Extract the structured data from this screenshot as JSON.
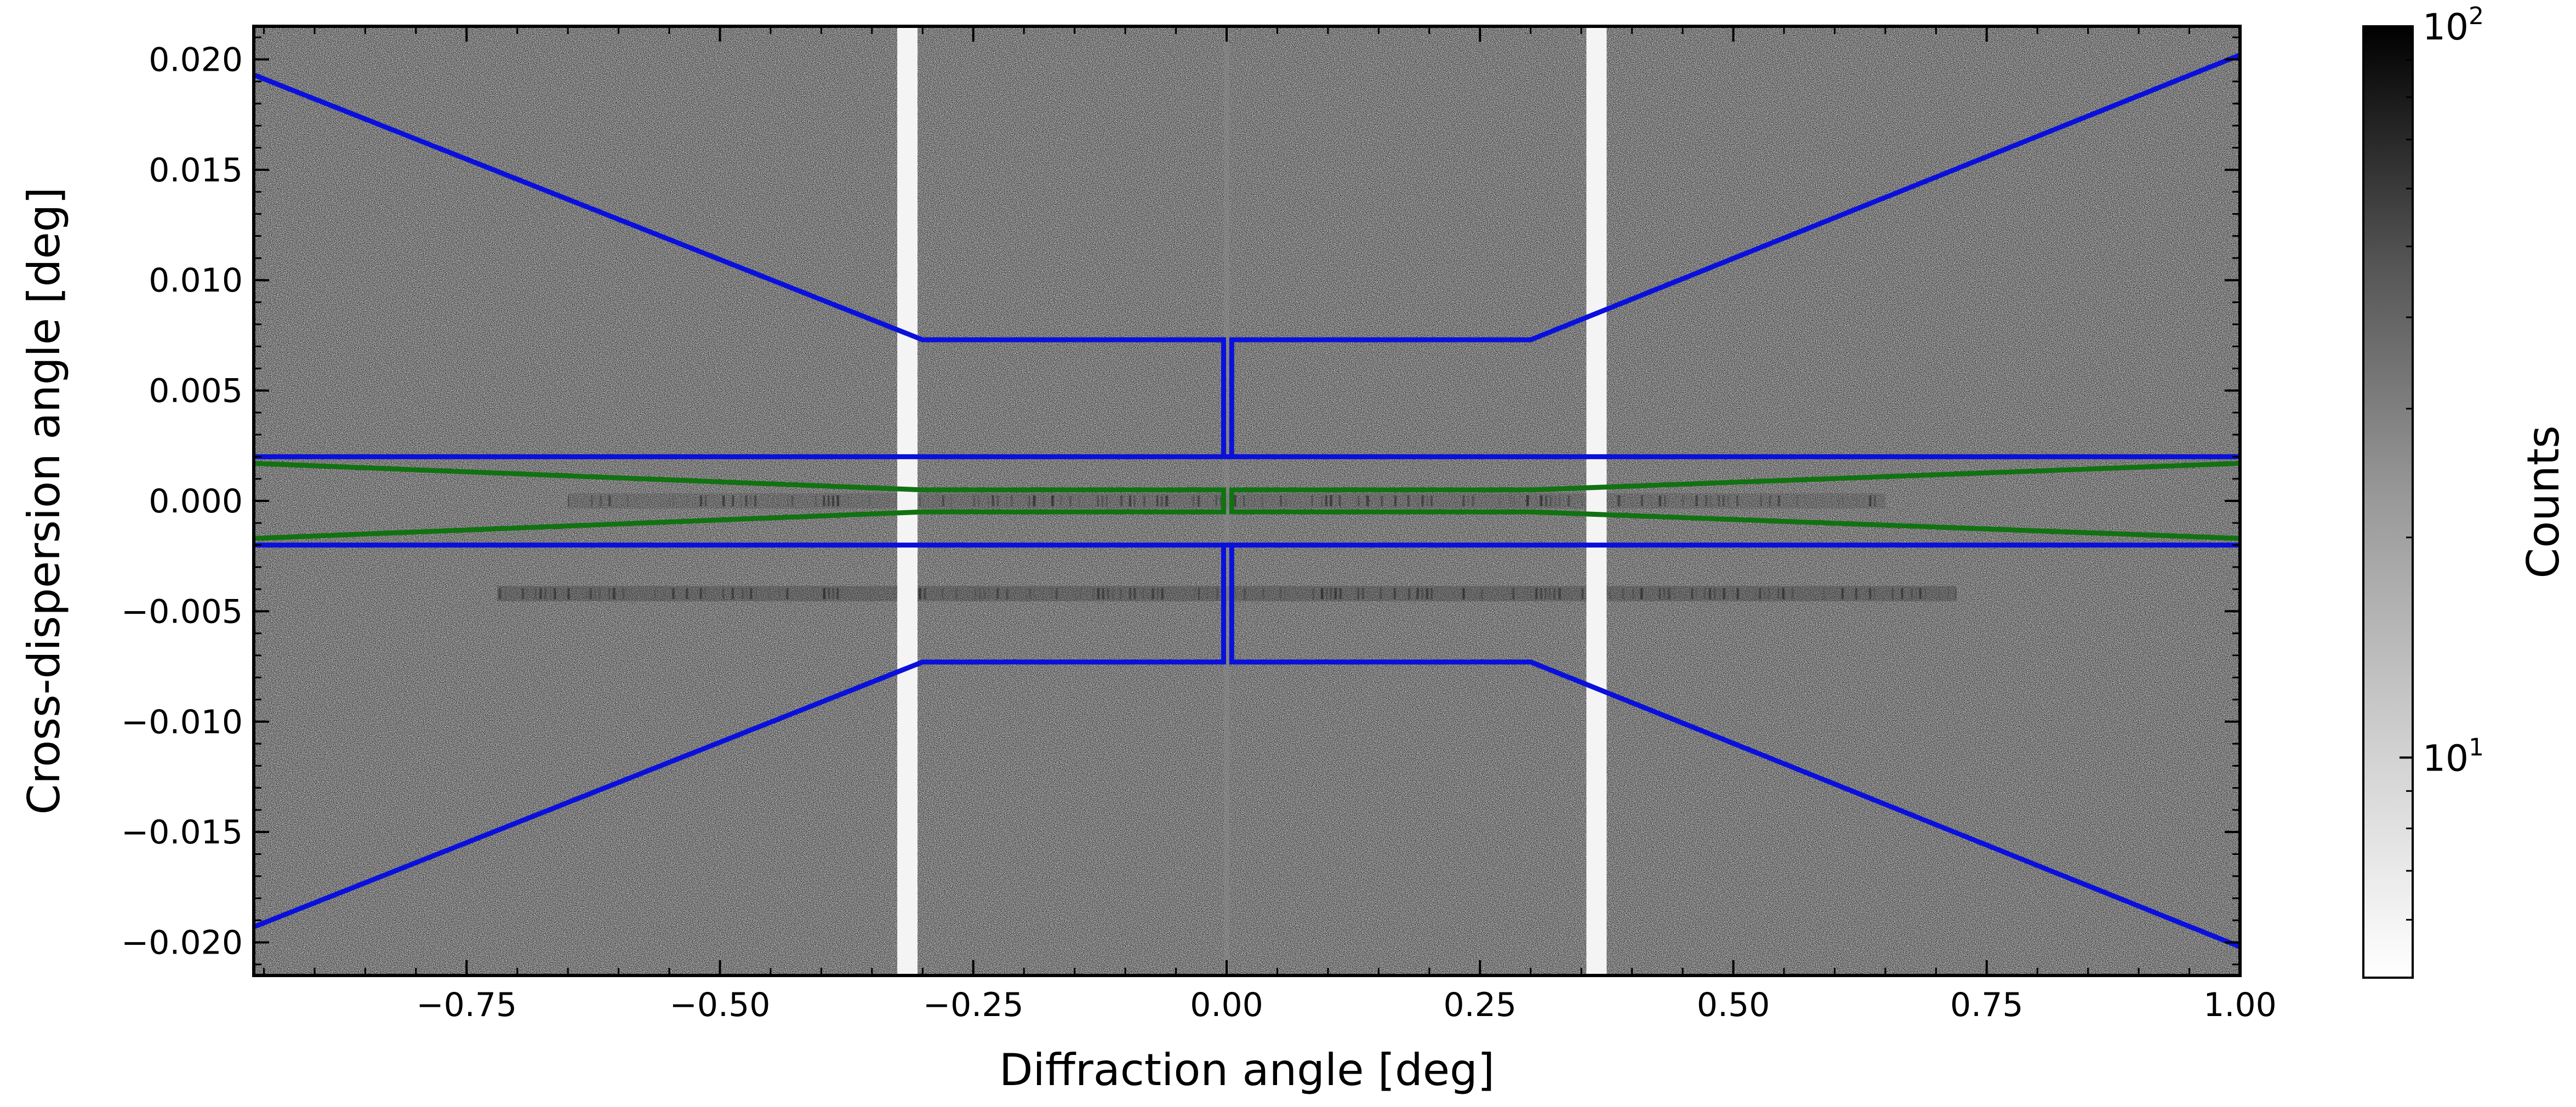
{
  "chart_data": {
    "type": "heatmap",
    "xlabel": "Diffraction angle [deg]",
    "ylabel": "Cross-dispersion angle [deg]",
    "xlim": [
      -0.96,
      1.0
    ],
    "ylim": [
      -0.0215,
      0.0215
    ],
    "x_ticks": [
      -0.75,
      -0.5,
      -0.25,
      0.0,
      0.25,
      0.5,
      0.75,
      1.0
    ],
    "x_tick_labels": [
      "−0.75",
      "−0.50",
      "−0.25",
      "0.00",
      "0.25",
      "0.50",
      "0.75",
      "1.00"
    ],
    "y_ticks": [
      0.02,
      0.015,
      0.01,
      0.005,
      0.0,
      -0.005,
      -0.01,
      -0.015,
      -0.02
    ],
    "y_tick_labels": [
      "0.020",
      "0.015",
      "0.010",
      "0.005",
      "0.000",
      "−0.005",
      "−0.010",
      "−0.015",
      "−0.020"
    ],
    "colorbar": {
      "label": "Counts",
      "scale": "log",
      "range": [
        5,
        100
      ],
      "cmap": "gray_r",
      "ticks": [
        {
          "value": 100,
          "base": "10",
          "exp": "2"
        },
        {
          "value": 10,
          "base": "10",
          "exp": "1"
        }
      ]
    },
    "image_features": {
      "background_counts": "noisy grey",
      "gap_stripes_x": [
        [
          -0.325,
          -0.305
        ],
        [
          0.355,
          0.375
        ]
      ],
      "gap_fill": "#f4f4f4",
      "bands": [
        {
          "y": 0.0,
          "x_range": [
            -0.65,
            0.65
          ],
          "strength": 0.18
        },
        {
          "y": -0.0042,
          "x_range": [
            -0.72,
            0.72
          ],
          "strength": 0.28
        }
      ],
      "zero_order_x": 0.0
    },
    "region_colors": {
      "background_regions": "#0a10dc",
      "source_region": "#117211"
    },
    "series": [
      {
        "color": "#0a10dc",
        "x": [
          -0.96,
          -0.3,
          -0.003,
          -0.003
        ],
        "y": [
          0.0193,
          0.0073,
          0.0073,
          0.002
        ]
      },
      {
        "color": "#0a10dc",
        "x": [
          0.005,
          0.005,
          0.3,
          1.0
        ],
        "y": [
          0.002,
          0.0073,
          0.0073,
          0.0202
        ]
      },
      {
        "color": "#0a10dc",
        "x": [
          -0.96,
          1.0
        ],
        "y": [
          0.002,
          0.002
        ]
      },
      {
        "color": "#0a10dc",
        "x": [
          -0.96,
          1.0
        ],
        "y": [
          -0.002,
          -0.002
        ]
      },
      {
        "color": "#0a10dc",
        "x": [
          -0.96,
          -0.3,
          -0.003,
          -0.003
        ],
        "y": [
          -0.0193,
          -0.0073,
          -0.0073,
          -0.002
        ]
      },
      {
        "color": "#0a10dc",
        "x": [
          0.005,
          0.005,
          0.3,
          1.0
        ],
        "y": [
          -0.002,
          -0.0073,
          -0.0073,
          -0.0202
        ]
      },
      {
        "color": "#117211",
        "x": [
          -0.96,
          -0.3,
          -0.003,
          -0.003
        ],
        "y": [
          0.0017,
          0.0005,
          0.0005,
          0.0
        ]
      },
      {
        "color": "#117211",
        "x": [
          -0.96,
          -0.3,
          -0.003,
          -0.003
        ],
        "y": [
          -0.0017,
          -0.0005,
          -0.0005,
          0.0
        ]
      },
      {
        "color": "#117211",
        "x": [
          0.005,
          0.005,
          0.3,
          1.0
        ],
        "y": [
          0.0,
          0.0005,
          0.0005,
          0.0017
        ]
      },
      {
        "color": "#117211",
        "x": [
          0.005,
          0.005,
          0.3,
          1.0
        ],
        "y": [
          0.0,
          -0.0005,
          -0.0005,
          -0.0017
        ]
      }
    ]
  }
}
